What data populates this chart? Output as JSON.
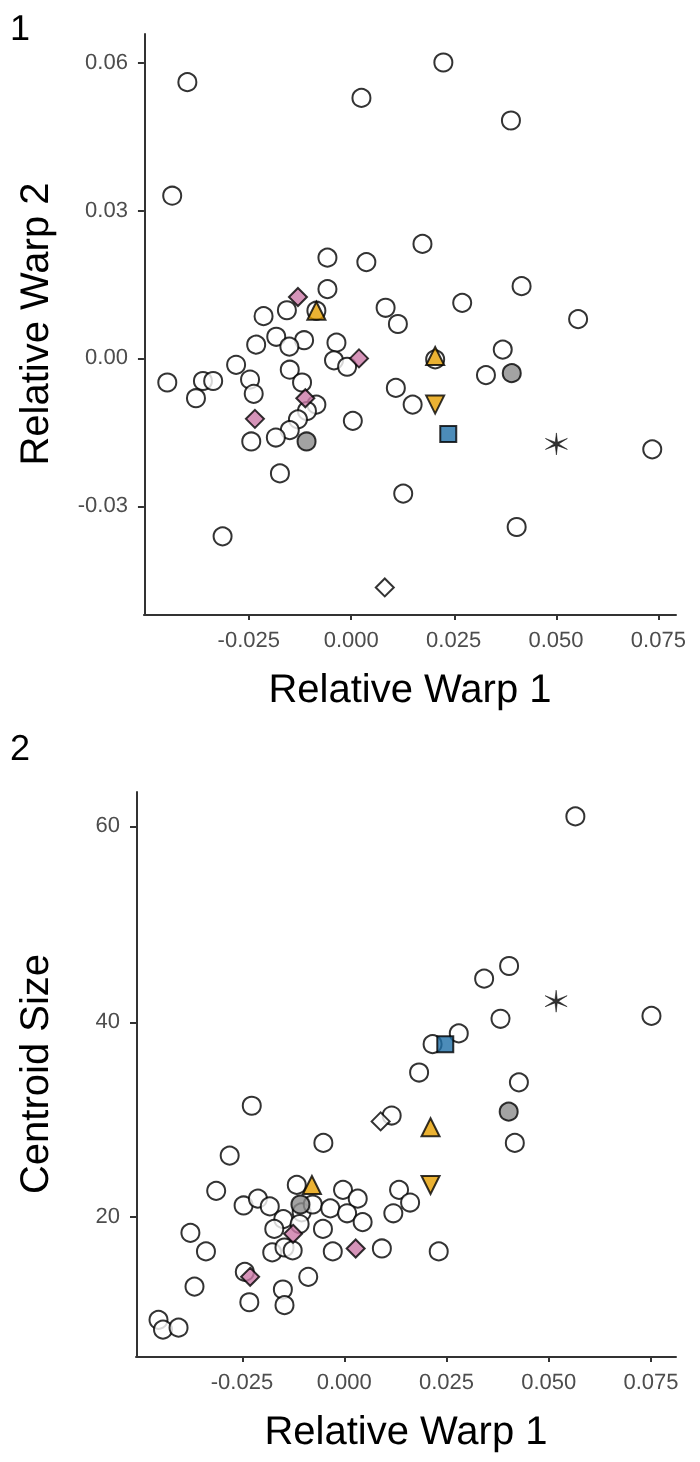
{
  "chart_data": [
    {
      "type": "scatter",
      "title": "1",
      "xlabel": "Relative Warp 1",
      "ylabel": "Relative Warp 2",
      "xlim": [
        -0.0506,
        0.0793
      ],
      "ylim": [
        -0.052,
        0.066
      ],
      "xticks": [
        {
          "value": -0.025,
          "label": "-0.025"
        },
        {
          "value": 0,
          "label": "0.000"
        },
        {
          "value": 0.025,
          "label": "0.025"
        },
        {
          "value": 0.05,
          "label": "0.050"
        },
        {
          "value": 0.075,
          "label": "0.075"
        }
      ],
      "yticks": [
        {
          "value": -0.03,
          "label": "-0.03"
        },
        {
          "value": 0,
          "label": "0.00"
        },
        {
          "value": 0.03,
          "label": "0.03"
        },
        {
          "value": 0.06,
          "label": "0.06"
        }
      ],
      "grid": false,
      "series": [
        {
          "color": "#ffffff",
          "marker": "circle",
          "x": [
            -0.04,
            0.0225,
            0.0025,
            0.039,
            -0.0437,
            -0.0058,
            0.0037,
            0.0174,
            0.0416,
            -0.0058,
            0.0271,
            -0.0157,
            -0.0214,
            -0.0085,
            0.0084,
            0.0554,
            0.0114,
            -0.0036,
            -0.0042,
            -0.001,
            -0.0115,
            -0.0183,
            -0.0151,
            -0.0232,
            -0.0281,
            -0.0449,
            -0.0362,
            -0.0337,
            -0.0379,
            -0.0247,
            -0.0238,
            -0.015,
            -0.012,
            -0.0085,
            -0.0108,
            -0.013,
            -0.015,
            -0.0184,
            -0.0244,
            -0.0174,
            0.0004,
            0.0109,
            0.015,
            0.0205,
            0.0329,
            0.037,
            0.0735,
            0.0127,
            -0.0314,
            0.0404
          ],
          "values": [
            0.0562,
            0.0602,
            0.053,
            0.0484,
            0.0331,
            0.0205,
            0.0196,
            0.0233,
            0.0147,
            0.0141,
            0.0113,
            0.0098,
            0.0086,
            0.0097,
            0.0103,
            0.008,
            0.007,
            0.0032,
            -0.0004,
            -0.0017,
            0.0037,
            0.0044,
            0.0024,
            0.0028,
            -0.0013,
            -0.0049,
            -0.0046,
            -0.0046,
            -0.0081,
            -0.0043,
            -0.0072,
            -0.0023,
            -0.0049,
            -0.0094,
            -0.0107,
            -0.0124,
            -0.0146,
            -0.0161,
            -0.0169,
            -0.0234,
            -0.0127,
            -0.006,
            -0.0094,
            -0.0002,
            -0.0034,
            0.0018,
            -0.0185,
            -0.0275,
            -0.0362,
            -0.0343
          ]
        },
        {
          "color": "#8c8c8c",
          "marker": "circle",
          "x": [
            -0.0109,
            0.0392
          ],
          "values": [
            -0.0169,
            -0.003
          ]
        },
        {
          "color": "#cc79a7",
          "marker": "diamond",
          "x": [
            -0.013,
            0.0019,
            -0.0112,
            -0.0235
          ],
          "values": [
            0.0125,
            0.0,
            -0.0081,
            -0.0123
          ]
        },
        {
          "color": "#e69f00",
          "marker": "triangle",
          "x": [
            -0.0085,
            0.0205
          ],
          "values": [
            0.0097,
            0.0005
          ]
        },
        {
          "color": "#e69f00",
          "marker": "triangle-down",
          "x": [
            0.0205
          ],
          "values": [
            -0.0094
          ]
        },
        {
          "color": "#1f6fa8",
          "marker": "square",
          "x": [
            0.0237
          ],
          "values": [
            -0.0154
          ]
        },
        {
          "color": "#000000",
          "marker": "cross",
          "x": [
            0.0501
          ],
          "values": [
            -0.0174
          ]
        },
        {
          "color": "#ffffff",
          "marker": "diamond",
          "x": [
            0.0082
          ],
          "values": [
            -0.0466
          ]
        }
      ]
    },
    {
      "type": "scatter",
      "title": "2",
      "xlabel": "Relative Warp 1",
      "ylabel": "Centroid Size",
      "xlim": [
        -0.0509,
        0.0811
      ],
      "ylim": [
        5.8,
        63.5
      ],
      "xticks": [
        {
          "value": -0.025,
          "label": "-0.025"
        },
        {
          "value": 0,
          "label": "0.000"
        },
        {
          "value": 0.025,
          "label": "0.025"
        },
        {
          "value": 0.05,
          "label": "0.050"
        },
        {
          "value": 0.075,
          "label": "0.075"
        }
      ],
      "yticks": [
        20,
        40,
        60
      ],
      "grid": false,
      "series": [
        {
          "color": "#ffffff",
          "marker": "circle",
          "x": [
            0.0565,
            0.0342,
            0.0403,
            0.0382,
            0.0751,
            0.028,
            0.0216,
            0.0183,
            0.0427,
            0.0417,
            0.0116,
            -0.0226,
            -0.0051,
            -0.028,
            -0.0116,
            -0.0313,
            -0.0246,
            -0.0211,
            -0.0182,
            -0.0104,
            -0.0077,
            -0.0003,
            0.0033,
            -0.0034,
            0.0007,
            0.0045,
            0.0134,
            0.0161,
            0.012,
            -0.0149,
            -0.0171,
            -0.0109,
            -0.0052,
            -0.0376,
            -0.0338,
            -0.0176,
            -0.0146,
            -0.0126,
            -0.0028,
            0.0092,
            0.0231,
            -0.0243,
            -0.0088,
            -0.0366,
            -0.015,
            -0.0232,
            -0.0146,
            -0.0454,
            -0.0443,
            -0.0405
          ],
          "values": [
            61.0,
            44.4,
            45.7,
            40.3,
            40.6,
            38.8,
            37.7,
            34.8,
            33.8,
            27.6,
            30.4,
            31.4,
            27.6,
            26.3,
            23.3,
            22.7,
            21.2,
            21.9,
            21.1,
            20.5,
            21.3,
            22.8,
            21.9,
            20.9,
            20.4,
            19.5,
            22.8,
            21.5,
            20.4,
            19.8,
            18.8,
            19.3,
            18.8,
            18.4,
            16.5,
            16.4,
            16.9,
            16.6,
            16.5,
            16.8,
            16.5,
            14.4,
            13.9,
            12.9,
            12.6,
            11.3,
            11.0,
            9.5,
            8.5,
            8.7
          ]
        },
        {
          "color": "#8c8c8c",
          "marker": "circle",
          "x": [
            -0.0107,
            0.0402
          ],
          "values": [
            21.3,
            30.8
          ]
        },
        {
          "color": "#cc79a7",
          "marker": "diamond",
          "x": [
            -0.0125,
            0.0028,
            -0.023
          ],
          "values": [
            18.3,
            16.8,
            13.9
          ]
        },
        {
          "color": "#e69f00",
          "marker": "triangle",
          "x": [
            -0.0079,
            0.0211
          ],
          "values": [
            23.3,
            29.2
          ]
        },
        {
          "color": "#e69f00",
          "marker": "triangle-down",
          "x": [
            0.0211
          ],
          "values": [
            23.3
          ]
        },
        {
          "color": "#1f6fa8",
          "marker": "square",
          "x": [
            0.0247
          ],
          "values": [
            37.7
          ]
        },
        {
          "color": "#000000",
          "marker": "cross",
          "x": [
            0.0518
          ],
          "values": [
            42.1
          ]
        },
        {
          "color": "#ffffff",
          "marker": "diamond",
          "x": [
            0.0089
          ],
          "values": [
            29.8
          ]
        }
      ]
    }
  ]
}
